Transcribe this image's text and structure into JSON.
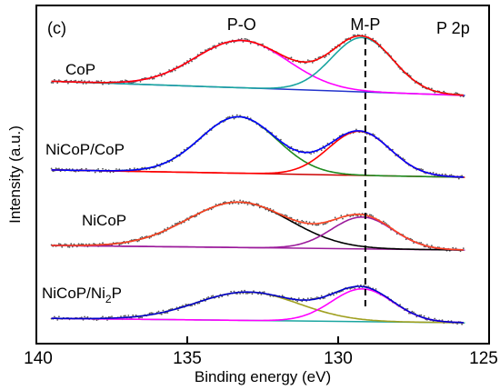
{
  "chart_data": {
    "type": "line",
    "panel_label": "(c)",
    "spectrum_label": "P 2p",
    "spectrum_label_color": "#ff0000",
    "xlabel": "Binding energy (eV)",
    "ylabel": "Intensity (a.u.)",
    "xlim": [
      140,
      125
    ],
    "x_reversed": true,
    "x_ticks": [
      140,
      135,
      130,
      125
    ],
    "y_ticks_shown": false,
    "peak_labels": [
      {
        "text": "P-O",
        "x": 133.2
      },
      {
        "text": "M-P",
        "x": 129.1
      }
    ],
    "reference_line_x": 129.1,
    "samples": [
      {
        "name": "CoP",
        "baseline": 0.6,
        "raw_color": "#555555",
        "components": [
          {
            "center": 133.2,
            "height": 2.0,
            "fwhm": 3.6,
            "color": "#ff00ff"
          },
          {
            "center": 129.2,
            "height": 2.3,
            "fwhm": 2.4,
            "color": "#1aa5a0"
          }
        ],
        "envelope_color": "#ff0000",
        "background_color": "#2233cc"
      },
      {
        "name": "NiCoP/CoP",
        "baseline": 0.3,
        "raw_color": "#555555",
        "components": [
          {
            "center": 133.3,
            "height": 2.3,
            "fwhm": 3.0,
            "color": "#1f8a1f"
          },
          {
            "center": 129.3,
            "height": 1.8,
            "fwhm": 2.4,
            "color": "#ff0000"
          }
        ],
        "envelope_color": "#0000ff",
        "background_color": "#cc0000"
      },
      {
        "name": "NiCoP",
        "baseline": 0.2,
        "raw_color": "#555555",
        "components": [
          {
            "center": 133.3,
            "height": 2.0,
            "fwhm": 4.0,
            "color": "#000000"
          },
          {
            "center": 129.2,
            "height": 1.4,
            "fwhm": 2.4,
            "color": "#9b1b9b"
          }
        ],
        "envelope_color": "#ff4422",
        "background_color": "#9b1b9b"
      },
      {
        "name": "NiCoP/Ni",
        "name_subscript": "2",
        "name_suffix": "P",
        "baseline": 0.2,
        "raw_color": "#555555",
        "components": [
          {
            "center": 133.0,
            "height": 1.3,
            "fwhm": 4.0,
            "color": "#a0a020"
          },
          {
            "center": 129.2,
            "height": 1.5,
            "fwhm": 2.4,
            "color": "#ff00ff"
          }
        ],
        "envelope_color": "#0000cc",
        "background_color": "#1aa5a0"
      }
    ]
  }
}
